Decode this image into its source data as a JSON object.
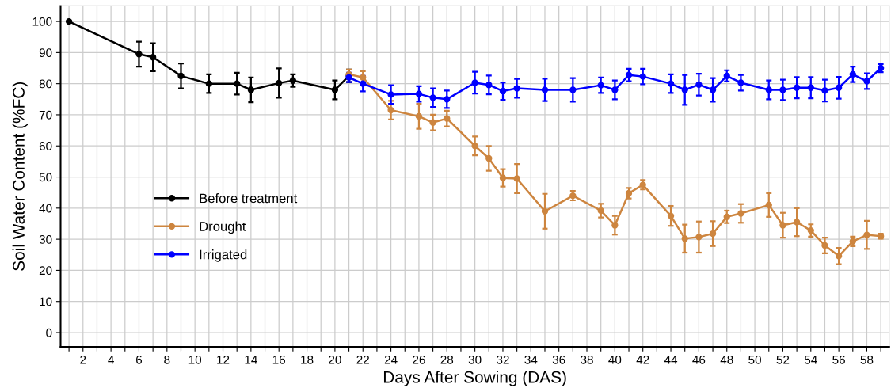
{
  "chart_data": {
    "type": "line",
    "xlabel": "Days After Sowing (DAS)",
    "ylabel": "Soil Water Content (%FC)",
    "xlim": [
      0.4,
      59.6
    ],
    "ylim": [
      -4.6,
      105
    ],
    "xticks": [
      {
        "value": 1,
        "label": null
      },
      2,
      {
        "value": 3,
        "label": null
      },
      4,
      {
        "value": 5,
        "label": null
      },
      6,
      {
        "value": 7,
        "label": null
      },
      8,
      {
        "value": 9,
        "label": null
      },
      10,
      {
        "value": 11,
        "label": null
      },
      12,
      {
        "value": 13,
        "label": null
      },
      14,
      {
        "value": 15,
        "label": null
      },
      16,
      {
        "value": 17,
        "label": null
      },
      18,
      {
        "value": 19,
        "label": null
      },
      20,
      {
        "value": 21,
        "label": null
      },
      22,
      {
        "value": 23,
        "label": null
      },
      24,
      {
        "value": 25,
        "label": null
      },
      26,
      {
        "value": 27,
        "label": null
      },
      28,
      {
        "value": 29,
        "label": null
      },
      30,
      {
        "value": 31,
        "label": null
      },
      32,
      {
        "value": 33,
        "label": null
      },
      34,
      {
        "value": 35,
        "label": null
      },
      36,
      {
        "value": 37,
        "label": null
      },
      38,
      {
        "value": 39,
        "label": null
      },
      40,
      {
        "value": 41,
        "label": null
      },
      42,
      {
        "value": 43,
        "label": null
      },
      44,
      {
        "value": 45,
        "label": null
      },
      46,
      {
        "value": 47,
        "label": null
      },
      48,
      {
        "value": 49,
        "label": null
      },
      50,
      {
        "value": 51,
        "label": null
      },
      52,
      {
        "value": 53,
        "label": null
      },
      54,
      {
        "value": 55,
        "label": null
      },
      56,
      {
        "value": 57,
        "label": null
      },
      58,
      {
        "value": 59,
        "label": null
      }
    ],
    "yticks": [
      0,
      10,
      20,
      30,
      40,
      50,
      60,
      70,
      80,
      90,
      100
    ],
    "grid": true,
    "legend": "left",
    "marker": "circle",
    "line_style": "solid",
    "series": [
      {
        "name": "Before treatment",
        "color": "#000000",
        "x": [
          1,
          6,
          7,
          9,
          11,
          13,
          14,
          16,
          17,
          20,
          21
        ],
        "values": [
          100,
          89.5,
          88.5,
          82.5,
          80,
          80,
          78,
          80.2,
          81,
          78,
          82.5
        ],
        "errors": [
          null,
          4,
          4.5,
          4,
          3,
          3.5,
          4,
          4.7,
          2,
          3,
          2
        ]
      },
      {
        "name": "Drought",
        "color": "#cd853f",
        "x": [
          21,
          22,
          24,
          26,
          27,
          28,
          30,
          31,
          32,
          33,
          35,
          37,
          39,
          40,
          41,
          42,
          44,
          45,
          46,
          47,
          48,
          49,
          51,
          52,
          53,
          54,
          55,
          56,
          57,
          58,
          59
        ],
        "values": [
          83,
          82,
          71.5,
          69.5,
          67.5,
          68.8,
          60,
          56,
          49.7,
          49.5,
          39,
          44,
          39.2,
          34.5,
          44.8,
          47.5,
          37.5,
          30.2,
          30.7,
          31.8,
          37.2,
          38.3,
          41,
          34.5,
          35.5,
          32.8,
          28,
          24.6,
          29.3,
          31.4,
          31
        ],
        "errors": [
          1.5,
          2,
          3,
          4,
          2.5,
          2.5,
          3,
          4,
          2.8,
          4.7,
          5.6,
          1.5,
          2.2,
          3,
          1.7,
          1.5,
          3.2,
          4.5,
          5,
          4,
          2,
          3,
          3.8,
          4,
          4.5,
          2,
          2.5,
          2.6,
          1.5,
          4.5,
          0.8
        ]
      },
      {
        "name": "Irrigated",
        "color": "#0000ff",
        "x": [
          21,
          22,
          24,
          26,
          27,
          28,
          30,
          31,
          32,
          33,
          35,
          37,
          39,
          40,
          41,
          42,
          44,
          45,
          46,
          47,
          48,
          49,
          51,
          52,
          53,
          54,
          55,
          56,
          57,
          58,
          59
        ],
        "values": [
          82,
          80,
          76.5,
          76.7,
          75.5,
          75,
          80.3,
          79.6,
          77.6,
          78.5,
          78,
          78,
          79.5,
          78,
          82.8,
          82.3,
          80,
          78,
          79.7,
          78,
          82.5,
          80.3,
          78,
          78,
          78.7,
          78.7,
          77.8,
          78.7,
          83,
          80.8,
          85
        ],
        "errors": [
          1.5,
          2.5,
          3,
          2.5,
          3,
          2.8,
          3.5,
          3,
          2.8,
          3,
          3.6,
          3.8,
          2.5,
          3,
          2,
          2.5,
          3,
          4.8,
          3.5,
          3.8,
          1.8,
          2.5,
          3,
          3.3,
          3.4,
          3.4,
          3.5,
          3.5,
          2.5,
          2.5,
          1.3
        ]
      }
    ]
  }
}
